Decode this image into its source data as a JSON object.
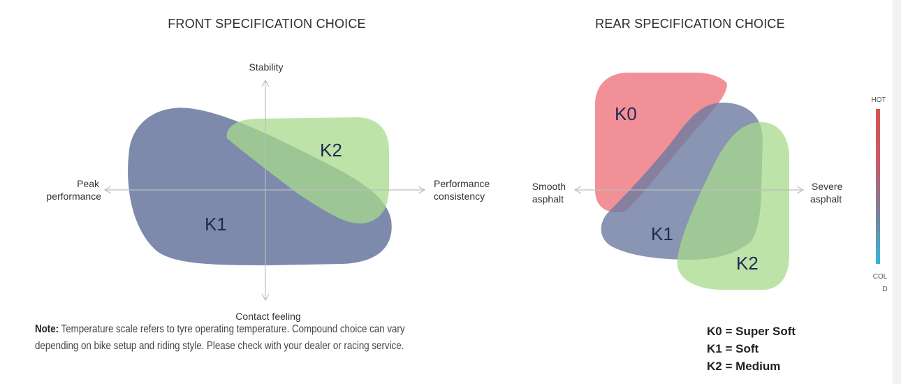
{
  "front": {
    "title": "FRONT SPECIFICATION CHOICE",
    "axis_top": "Stability",
    "axis_bottom": "Contact feeling",
    "axis_left": [
      "Peak",
      "performance"
    ],
    "axis_right": [
      "Performance",
      "consistency"
    ],
    "compounds": [
      "K1",
      "K2"
    ]
  },
  "rear": {
    "title": "REAR SPECIFICATION CHOICE",
    "axis_left": [
      "Smooth",
      "asphalt"
    ],
    "axis_right": [
      "Severe",
      "asphalt"
    ],
    "compounds": [
      "K0",
      "K1",
      "K2"
    ]
  },
  "temperature_scale": {
    "hot_label": "HOT",
    "cold_label_lines": [
      "COL",
      "D"
    ],
    "hot_color": "#d9534f",
    "cold_color": "#35b6d8"
  },
  "colors": {
    "k0": "#ef7c84",
    "k1": "#6b7aa0",
    "k2": "#a7d98c"
  },
  "note": {
    "label": "Note:",
    "text_line1": " Temperature scale refers to tyre operating temperature. Compound choice can vary",
    "text_line2": "depending on bike setup and riding style. Please check with your dealer or racing service."
  },
  "legend": [
    "K0 = Super Soft",
    "K1 = Soft",
    "K2 = Medium"
  ]
}
